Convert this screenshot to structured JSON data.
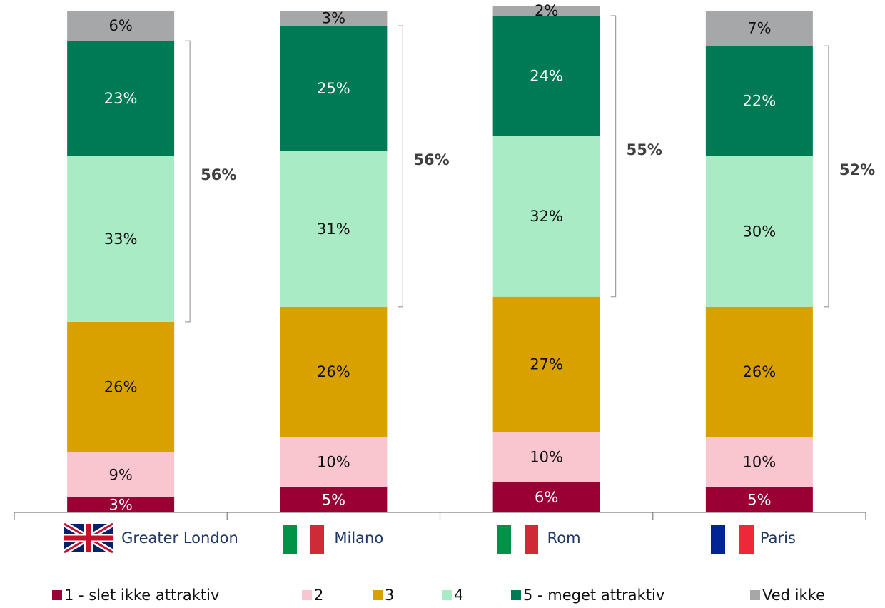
{
  "chart_data": {
    "type": "stacked_bar",
    "categories": [
      "Greater London",
      "Milano",
      "Rom",
      "Paris"
    ],
    "ylim": [
      0,
      100
    ],
    "series": [
      {
        "name": "1 - slet ikke attraktiv",
        "color": "#9b0034",
        "values": [
          3,
          5,
          6,
          5
        ],
        "value_labels": [
          "3%",
          "5%",
          "6%",
          "5%"
        ]
      },
      {
        "name": "2",
        "color": "#f9c6d0",
        "values": [
          9,
          10,
          10,
          10
        ],
        "value_labels": [
          "9%",
          "10%",
          "10%",
          "10%"
        ]
      },
      {
        "name": "3",
        "color": "#d9a100",
        "values": [
          26,
          26,
          27,
          26
        ],
        "value_labels": [
          "26%",
          "26%",
          "27%",
          "26%"
        ]
      },
      {
        "name": "4",
        "color": "#a8ebc4",
        "values": [
          33,
          31,
          32,
          30
        ],
        "value_labels": [
          "33%",
          "31%",
          "32%",
          "30%"
        ]
      },
      {
        "name": "5 - meget attraktiv",
        "color": "#007a55",
        "values": [
          23,
          25,
          24,
          22
        ],
        "value_labels": [
          "23%",
          "25%",
          "24%",
          "22%"
        ]
      },
      {
        "name": "Ved ikke",
        "color": "#a6a7a9",
        "values": [
          6,
          3,
          2,
          7
        ],
        "value_labels": [
          "6%",
          "3%",
          "2%",
          "7%"
        ]
      }
    ],
    "annotations": [
      {
        "value": 56,
        "label": "56%"
      },
      {
        "value": 56,
        "label": "56%"
      },
      {
        "value": 55,
        "label": "55%"
      },
      {
        "value": 52,
        "label": "52%"
      }
    ]
  }
}
